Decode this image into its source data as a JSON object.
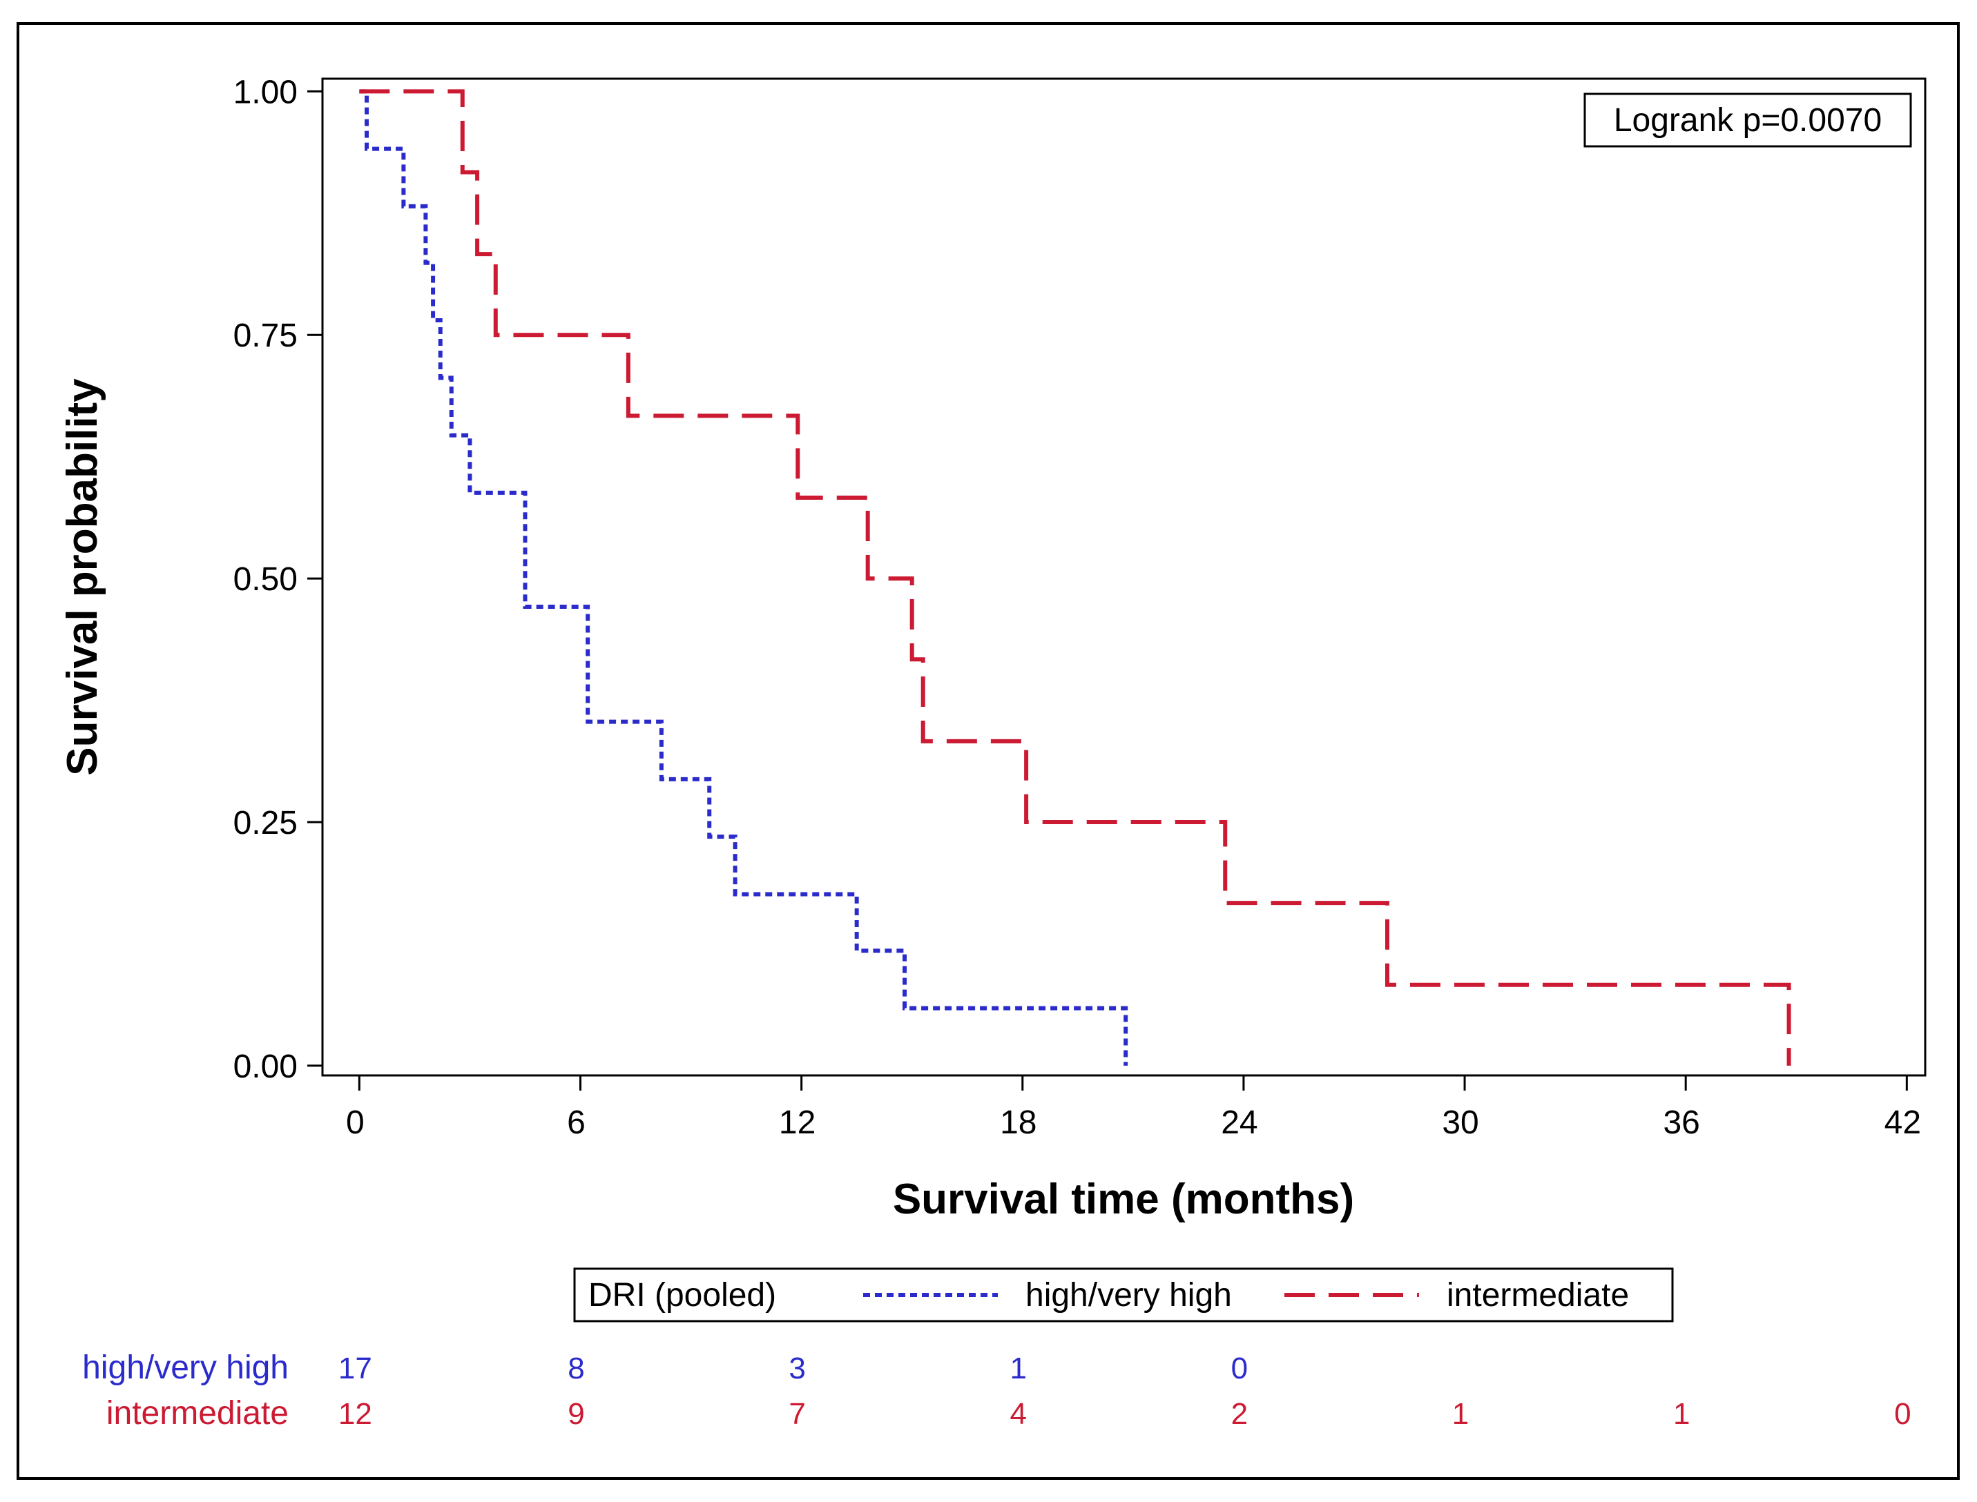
{
  "chart_data": {
    "type": "line",
    "subtype": "kaplan-meier step plot",
    "title": "",
    "xlabel": "Survival time (months)",
    "ylabel": "Survival probability",
    "xlim": [
      -1,
      42.5
    ],
    "ylim": [
      -0.01,
      1.013
    ],
    "x_ticks": [
      0,
      6,
      12,
      18,
      24,
      30,
      36,
      42
    ],
    "x_tick_labels": [
      "0",
      "6",
      "12",
      "18",
      "24",
      "30",
      "36",
      "42"
    ],
    "y_ticks": [
      0,
      0.25,
      0.5,
      0.75,
      1.0
    ],
    "y_tick_labels": [
      "0.00",
      "0.25",
      "0.50",
      "0.75",
      "1.00"
    ],
    "annotation": "Logrank p=0.0070",
    "legend": {
      "title": "DRI (pooled)",
      "position": "bottom",
      "entries": [
        "high/very high",
        "intermediate"
      ]
    },
    "series": [
      {
        "name": "high/very high",
        "color": "#2b2bcc",
        "line_style": "dotted",
        "steps": [
          [
            0,
            1.0
          ],
          [
            0.2,
            0.941
          ],
          [
            1.2,
            0.882
          ],
          [
            1.8,
            0.824
          ],
          [
            2.0,
            0.765
          ],
          [
            2.2,
            0.706
          ],
          [
            2.5,
            0.647
          ],
          [
            3.0,
            0.588
          ],
          [
            4.5,
            0.471
          ],
          [
            6.2,
            0.353
          ],
          [
            8.2,
            0.294
          ],
          [
            9.5,
            0.235
          ],
          [
            10.2,
            0.176
          ],
          [
            13.5,
            0.118
          ],
          [
            14.8,
            0.059
          ],
          [
            20.8,
            0.0
          ]
        ],
        "end_x": 20.8
      },
      {
        "name": "intermediate",
        "color": "#cc1a33",
        "line_style": "dashed",
        "steps": [
          [
            0,
            1.0
          ],
          [
            2.8,
            0.917
          ],
          [
            3.2,
            0.833
          ],
          [
            3.7,
            0.75
          ],
          [
            7.3,
            0.667
          ],
          [
            11.9,
            0.583
          ],
          [
            13.8,
            0.5
          ],
          [
            15.0,
            0.417
          ],
          [
            15.3,
            0.333
          ],
          [
            18.1,
            0.25
          ],
          [
            23.5,
            0.167
          ],
          [
            27.9,
            0.083
          ],
          [
            38.8,
            0.0
          ]
        ],
        "end_x": 38.8
      }
    ],
    "at_risk": {
      "time_points": [
        0,
        6,
        12,
        18,
        24,
        30,
        36,
        42
      ],
      "rows": [
        {
          "name": "high/very high",
          "color": "#2b2bcc",
          "counts": [
            "17",
            "8",
            "3",
            "1",
            "0"
          ]
        },
        {
          "name": "intermediate",
          "color": "#cc1a33",
          "counts": [
            "12",
            "9",
            "7",
            "4",
            "2",
            "1",
            "1",
            "0"
          ]
        }
      ]
    }
  }
}
